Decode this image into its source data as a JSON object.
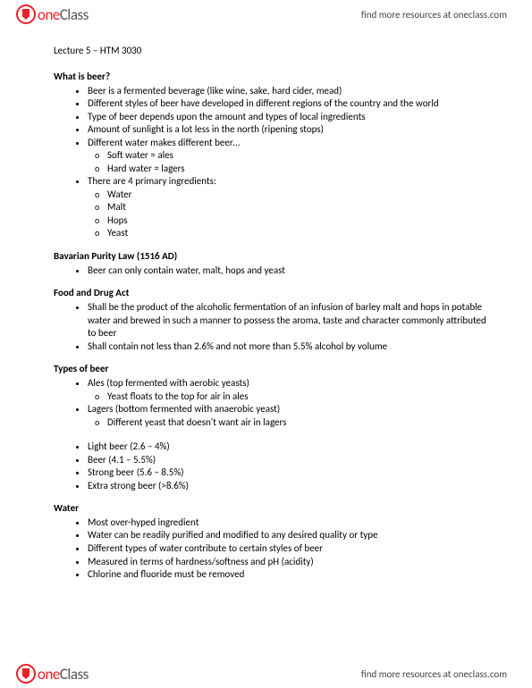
{
  "brand": {
    "name_part1": "one",
    "name_part2": "Class",
    "tagline": "find more resources at oneclass.com"
  },
  "doc": {
    "title": "Lecture 5 – HTM 3030",
    "sections": [
      {
        "heading": "What is beer?",
        "bullets": [
          {
            "t": "Beer is a fermented beverage (like wine, sake, hard cider, mead)"
          },
          {
            "t": "Different styles of beer have developed in different regions of the country and the world"
          },
          {
            "t": "Type of beer depends upon the amount and types of local ingredients"
          },
          {
            "t": "Amount of sunlight is a lot less in the north (ripening stops)"
          },
          {
            "t": "Different water makes different beer…",
            "sub": [
              "Soft water = ales",
              "Hard water = lagers"
            ]
          },
          {
            "t": "There are 4 primary ingredients:",
            "sub": [
              "Water",
              "Malt",
              "Hops",
              "Yeast"
            ]
          }
        ]
      },
      {
        "heading": "Bavarian Purity Law (1516 AD)",
        "bullets": [
          {
            "t": "Beer can only contain water, malt, hops and yeast"
          }
        ]
      },
      {
        "heading": "Food and Drug Act",
        "bullets": [
          {
            "t": "Shall be the product of the alcoholic fermentation of an infusion of barley malt and hops in potable water and brewed in such a manner to possess the aroma, taste and character commonly attributed to beer"
          },
          {
            "t": "Shall contain not less than 2.6% and not more than 5.5% alcohol by volume"
          }
        ]
      },
      {
        "heading": "Types of beer",
        "bullets": [
          {
            "t": "Ales (top fermented with aerobic yeasts)",
            "sub": [
              "Yeast floats to the top for air in ales"
            ]
          },
          {
            "t": "Lagers (bottom fermented with anaerobic yeast)",
            "sub": [
              "Different yeast that doesn't want air in lagers"
            ]
          }
        ],
        "bullets_after_gap": [
          {
            "t": "Light beer (2.6 – 4%)"
          },
          {
            "t": "Beer (4.1 – 5.5%)"
          },
          {
            "t": "Strong beer (5.6 – 8.5%)"
          },
          {
            "t": "Extra strong beer (>8.6%)"
          }
        ]
      },
      {
        "heading": "Water",
        "bullets": [
          {
            "t": "Most over-hyped ingredient"
          },
          {
            "t": "Water can be readily purified and modified to any desired quality or type"
          },
          {
            "t": "Different types of water contribute to certain styles of beer"
          },
          {
            "t": "Measured in terms of hardness/softness and pH (acidity)"
          },
          {
            "t": "Chlorine and fluoride must be removed"
          }
        ]
      }
    ]
  }
}
